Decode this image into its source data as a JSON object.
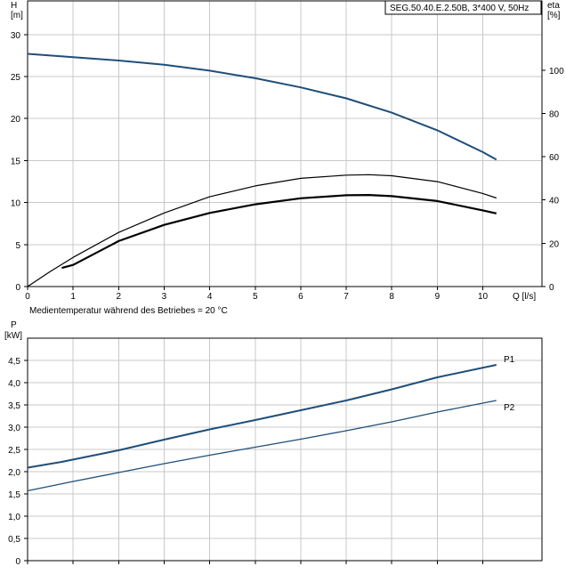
{
  "title": "SEG.50.40.E.2.50B, 3*400 V, 50Hz",
  "note": "Medientemperatur während des Betriebes = 20 °C",
  "colors": {
    "head": "#1f4e79",
    "p1": "#1f4e79",
    "p2": "#1f4e79",
    "eta": "#000000",
    "grid": "#c8c8c8"
  },
  "chart_data": [
    {
      "type": "line",
      "title": "SEG.50.40.E.2.50B, 3*400 V, 50Hz",
      "xlabel": "Q [l/s]",
      "ylabel_left": "H [m]",
      "ylabel_right": "eta [%]",
      "xlim": [
        0,
        11.3
      ],
      "ylim_left": [
        0,
        34
      ],
      "ylim_right": [
        0,
        132
      ],
      "x_ticks": [
        "0",
        "1",
        "2",
        "3",
        "4",
        "5",
        "6",
        "7",
        "8",
        "9",
        "10"
      ],
      "y_ticks_left": [
        "0",
        "5",
        "10",
        "15",
        "20",
        "25",
        "30"
      ],
      "y_ticks_right": [
        "0",
        "20",
        "40",
        "60",
        "80",
        "100"
      ],
      "grid": true,
      "series": [
        {
          "axis": "left",
          "style": "head",
          "points": [
            [
              0,
              27.7
            ],
            [
              1,
              27.3
            ],
            [
              2,
              26.9
            ],
            [
              3,
              26.4
            ],
            [
              4,
              25.7
            ],
            [
              5,
              24.8
            ],
            [
              6,
              23.7
            ],
            [
              7,
              22.4
            ],
            [
              8,
              20.7
            ],
            [
              9,
              18.6
            ],
            [
              10,
              16.0
            ],
            [
              10.3,
              15.1
            ]
          ]
        },
        {
          "axis": "right",
          "style": "eta_thin",
          "points": [
            [
              0,
              0
            ],
            [
              0.5,
              7
            ],
            [
              1,
              13.5
            ],
            [
              2,
              25
            ],
            [
              3,
              34
            ],
            [
              4,
              41.5
            ],
            [
              5,
              46.5
            ],
            [
              6,
              50
            ],
            [
              7,
              51.5
            ],
            [
              7.5,
              51.7
            ],
            [
              8,
              51.2
            ],
            [
              9,
              48.5
            ],
            [
              10,
              43
            ],
            [
              10.3,
              40.9
            ]
          ]
        },
        {
          "axis": "right",
          "style": "eta_thick",
          "points": [
            [
              0.75,
              8.6
            ],
            [
              1,
              10
            ],
            [
              2,
              21
            ],
            [
              3,
              28.5
            ],
            [
              4,
              34
            ],
            [
              5,
              38
            ],
            [
              6,
              40.8
            ],
            [
              7,
              42.2
            ],
            [
              7.5,
              42.3
            ],
            [
              8,
              41.8
            ],
            [
              9,
              39.5
            ],
            [
              10,
              35.2
            ],
            [
              10.3,
              33.8
            ]
          ]
        }
      ]
    },
    {
      "type": "line",
      "ylabel": "P [kW]",
      "xlim": [
        0,
        11.3
      ],
      "ylim": [
        0,
        5.0
      ],
      "y_ticks": [
        "0",
        "0,5",
        "1,0",
        "1,5",
        "2,0",
        "2,5",
        "3,0",
        "3,5",
        "4,0",
        "4,5"
      ],
      "grid": true,
      "series": [
        {
          "name": "P1",
          "style": "p1",
          "points": [
            [
              0,
              2.09
            ],
            [
              0.75,
              2.22
            ],
            [
              2,
              2.48
            ],
            [
              3,
              2.72
            ],
            [
              4,
              2.95
            ],
            [
              5,
              3.16
            ],
            [
              6,
              3.38
            ],
            [
              7,
              3.6
            ],
            [
              8,
              3.85
            ],
            [
              9,
              4.12
            ],
            [
              10.3,
              4.4
            ]
          ]
        },
        {
          "name": "P2",
          "style": "p2",
          "points": [
            [
              0,
              1.57
            ],
            [
              1,
              1.78
            ],
            [
              2,
              1.98
            ],
            [
              3,
              2.18
            ],
            [
              4,
              2.37
            ],
            [
              5,
              2.55
            ],
            [
              6,
              2.73
            ],
            [
              7,
              2.92
            ],
            [
              8,
              3.12
            ],
            [
              9,
              3.34
            ],
            [
              10.3,
              3.6
            ]
          ]
        }
      ]
    }
  ],
  "labels": {
    "h_axis": "H",
    "h_unit": "[m]",
    "eta_axis": "eta",
    "eta_unit": "[%]",
    "q_axis": "Q [l/s]",
    "p_axis": "P",
    "p_unit": "[kW]",
    "p1": "P1",
    "p2": "P2"
  }
}
